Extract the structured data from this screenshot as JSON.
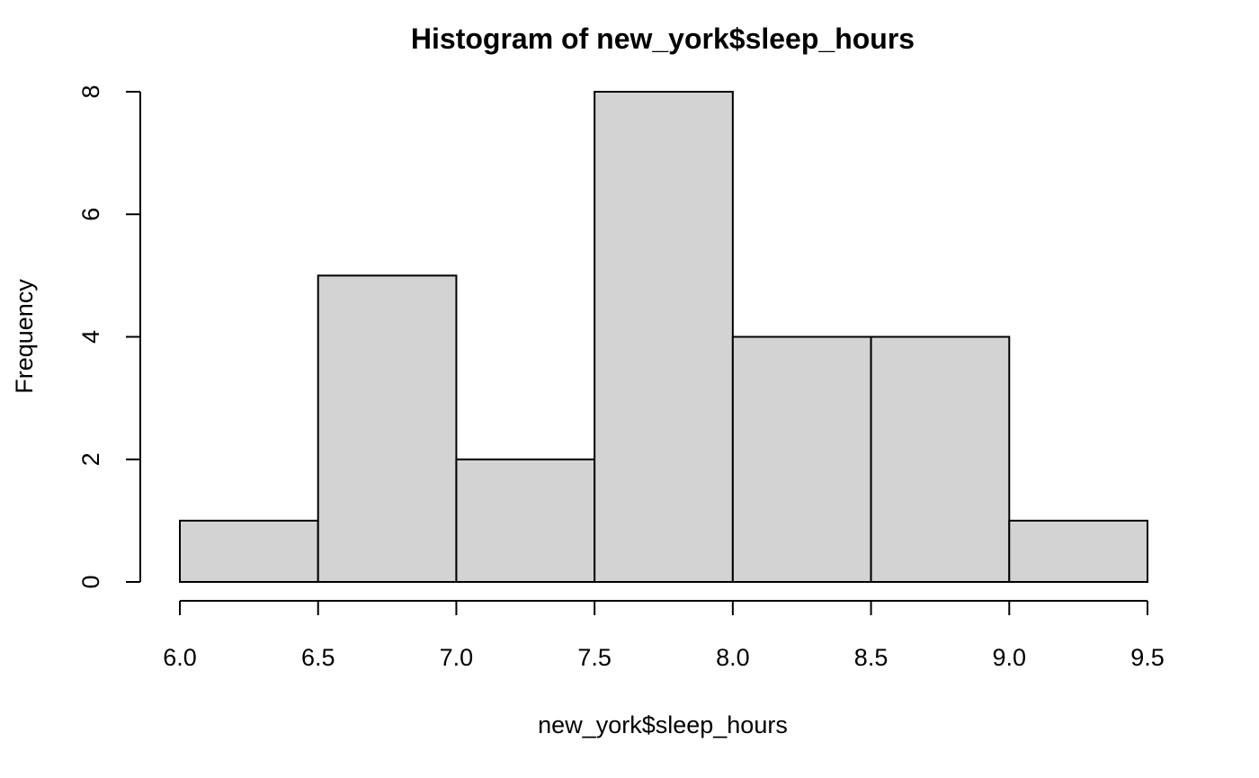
{
  "chart_data": {
    "type": "bar",
    "title": "Histogram of new_york$sleep_hours",
    "xlabel": "new_york$sleep_hours",
    "ylabel": "Frequency",
    "bins": [
      {
        "start": 6.0,
        "end": 6.5,
        "count": 1
      },
      {
        "start": 6.5,
        "end": 7.0,
        "count": 5
      },
      {
        "start": 7.0,
        "end": 7.5,
        "count": 2
      },
      {
        "start": 7.5,
        "end": 8.0,
        "count": 8
      },
      {
        "start": 8.0,
        "end": 8.5,
        "count": 4
      },
      {
        "start": 8.5,
        "end": 9.0,
        "count": 4
      },
      {
        "start": 9.0,
        "end": 9.5,
        "count": 1
      }
    ],
    "xlim": [
      6.0,
      9.5
    ],
    "ylim": [
      0,
      8
    ],
    "x_ticks": [
      "6.0",
      "6.5",
      "7.0",
      "7.5",
      "8.0",
      "8.5",
      "9.0",
      "9.5"
    ],
    "y_ticks": [
      "0",
      "2",
      "4",
      "6",
      "8"
    ],
    "grid": false,
    "bar_color": "#d3d3d3",
    "border_color": "#000000"
  }
}
